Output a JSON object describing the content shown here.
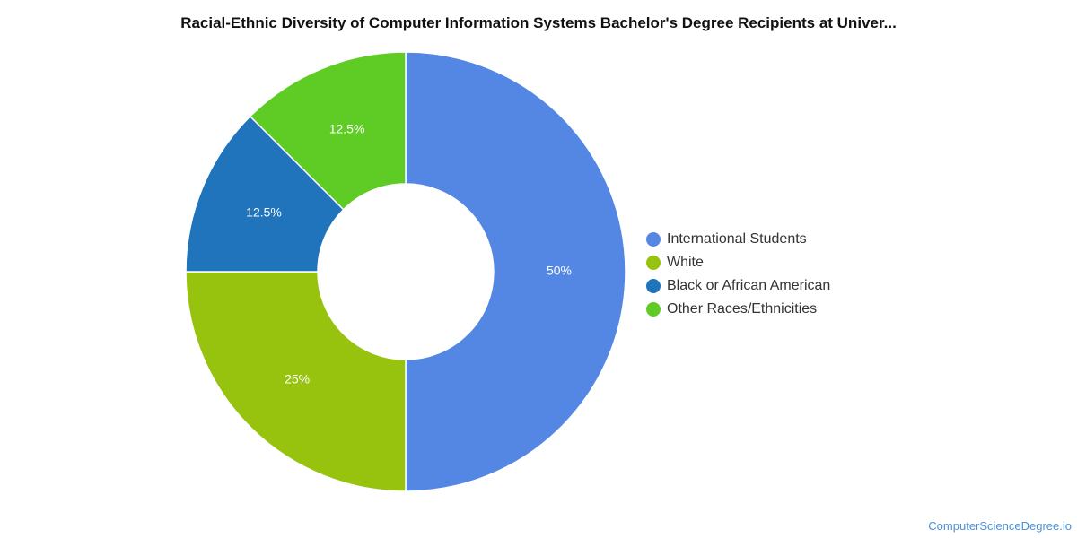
{
  "chart_data": {
    "type": "pie",
    "title": "Racial-Ethnic Diversity of Computer Information Systems Bachelor's Degree Recipients at Univer...",
    "categories": [
      "International Students",
      "White",
      "Black or African American",
      "Other Races/Ethnicities"
    ],
    "values": [
      50,
      25,
      12.5,
      12.5
    ],
    "value_labels": [
      "50%",
      "25%",
      "12.5%",
      "12.5%"
    ],
    "colors": [
      "#5487e3",
      "#97c20e",
      "#1f74bb",
      "#5fcb25"
    ],
    "donut": true,
    "legend_position": "right"
  },
  "source": "ComputerScienceDegree.io"
}
